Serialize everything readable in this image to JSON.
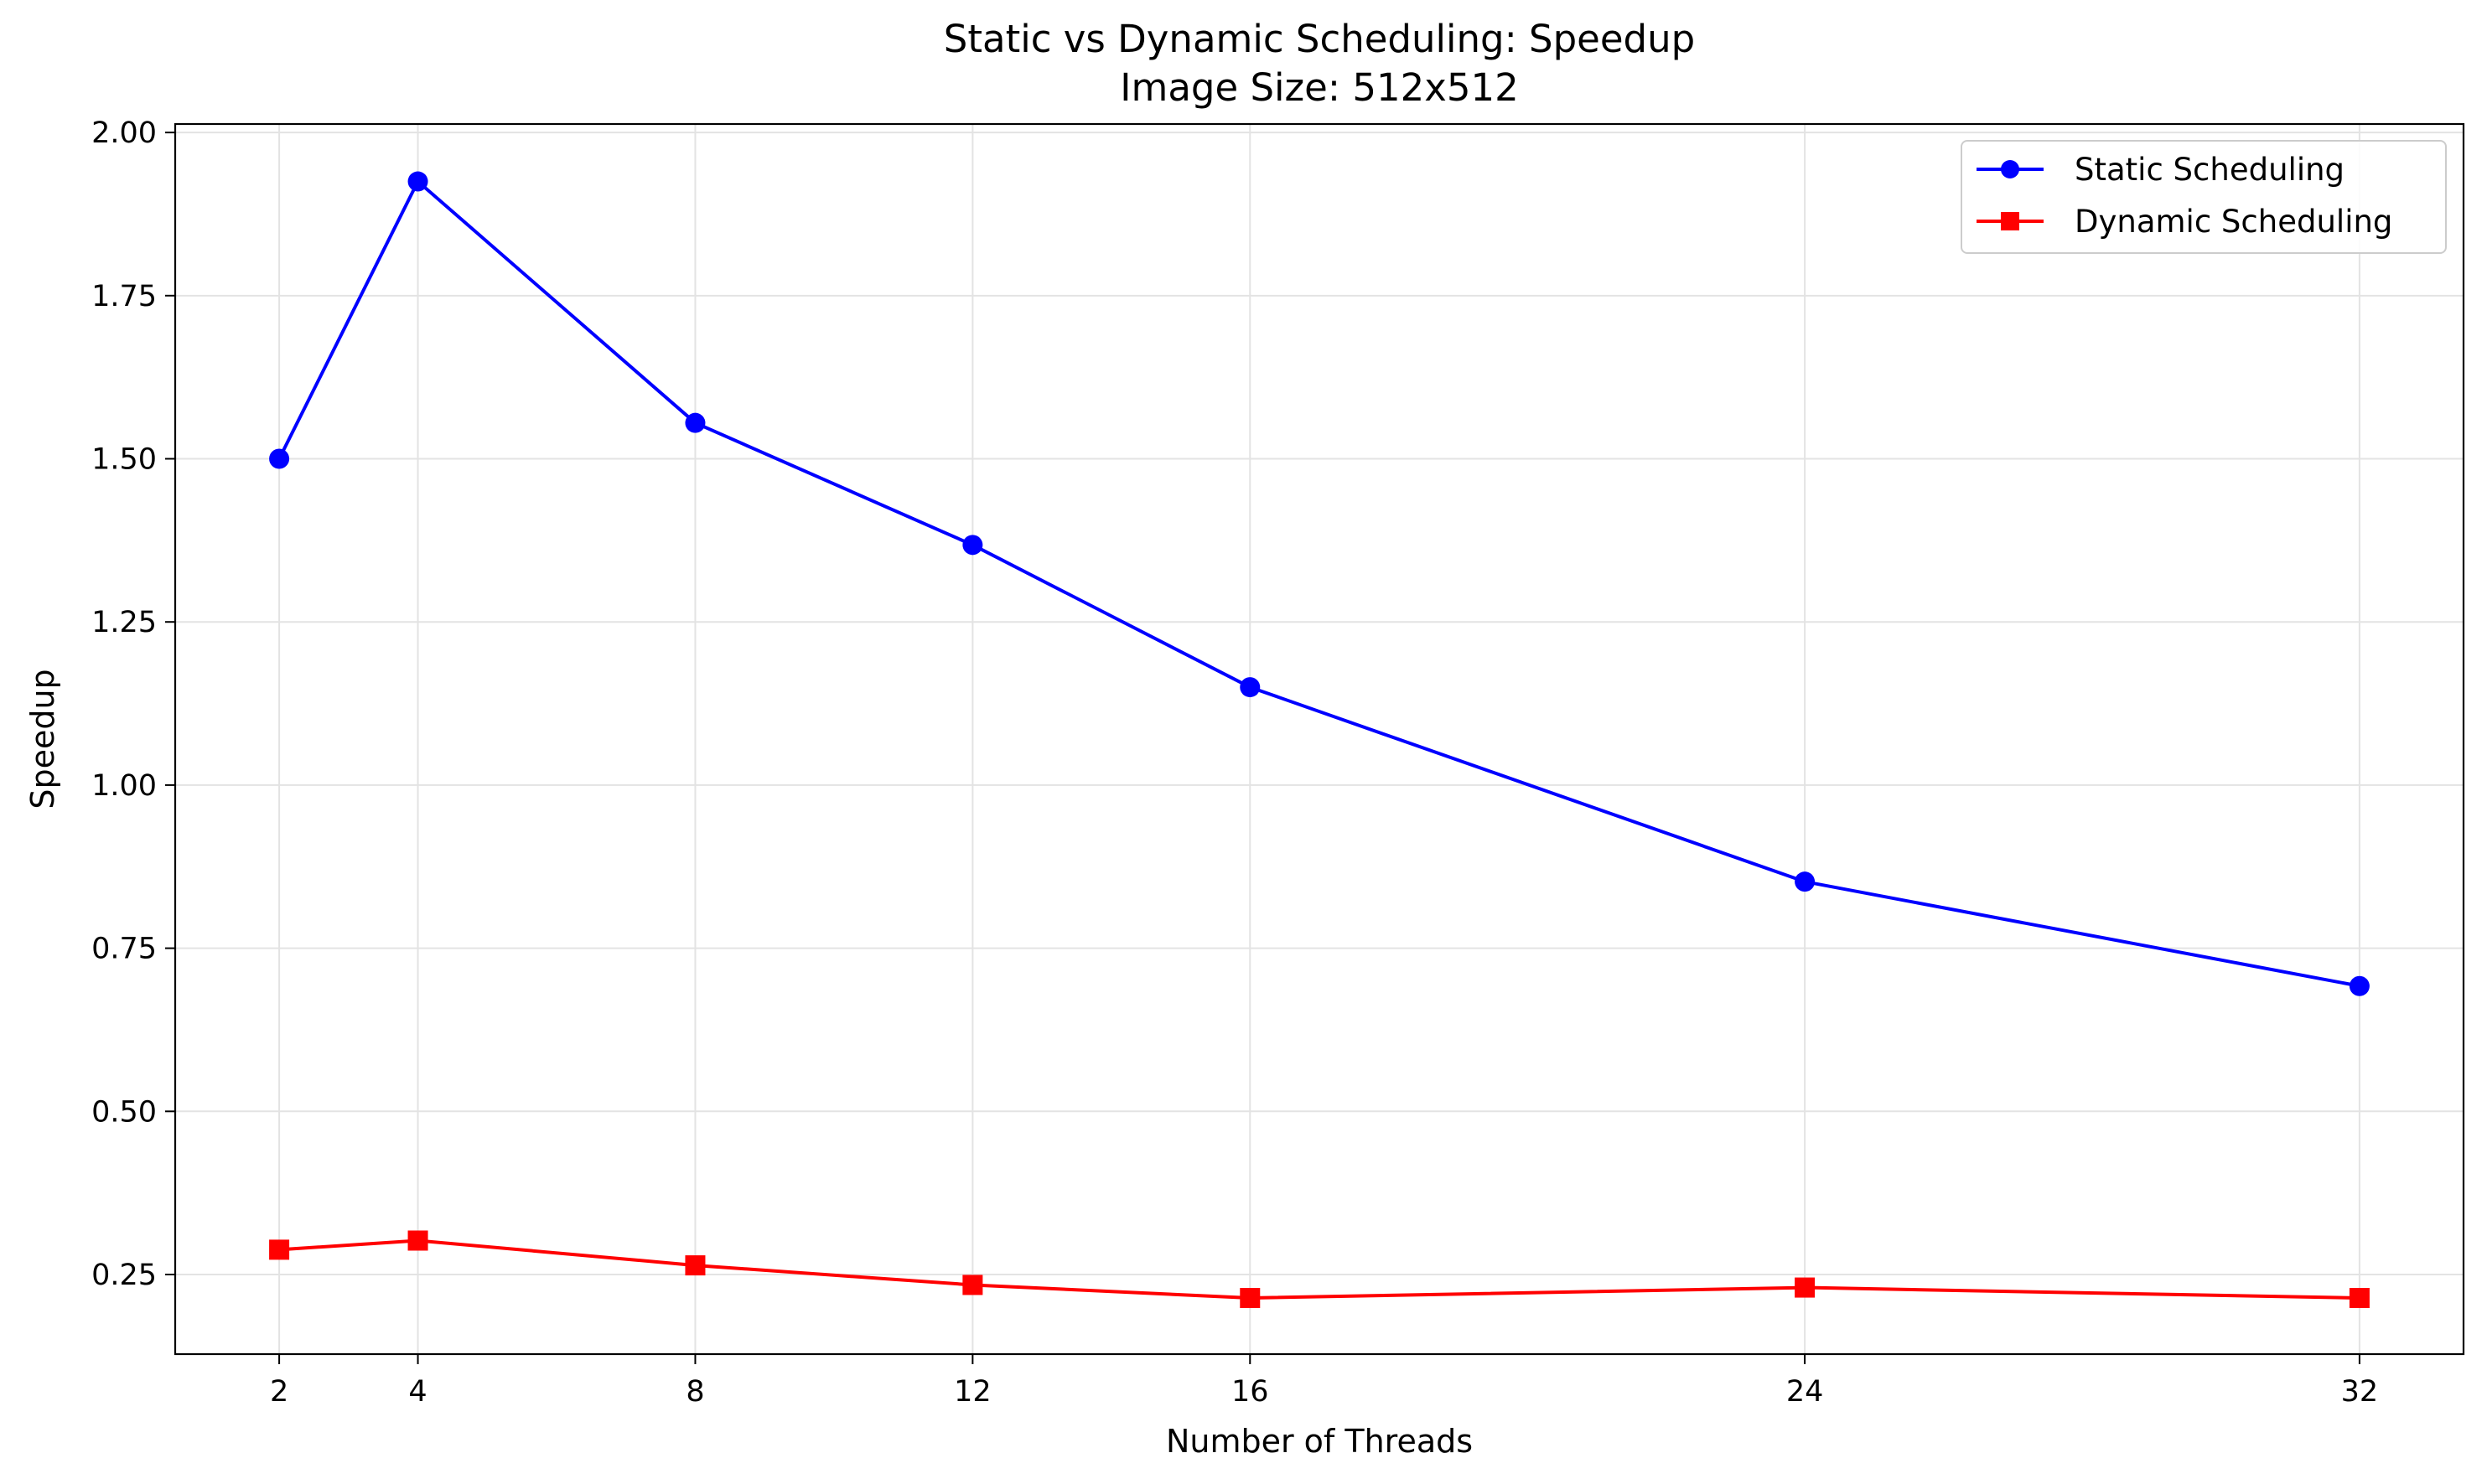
{
  "chart_data": {
    "type": "line",
    "title": "Static vs Dynamic Scheduling: Speedup",
    "subtitle": "Image Size: 512x512",
    "xlabel": "Number of Threads",
    "ylabel": "Speedup",
    "x": [
      2,
      4,
      8,
      12,
      16,
      24,
      32
    ],
    "xticks": [
      "2",
      "4",
      "8",
      "12",
      "16",
      "24",
      "32"
    ],
    "xlim": [
      0.5,
      33.5
    ],
    "yticks": [
      "0.25",
      "0.50",
      "0.75",
      "1.00",
      "1.25",
      "1.50",
      "1.75",
      "2.00"
    ],
    "ylim": [
      0.128,
      2.013
    ],
    "grid": true,
    "legend_position": "top-right",
    "series": [
      {
        "name": "Static Scheduling",
        "color": "#0000ff",
        "marker": "circle",
        "values": [
          1.5,
          1.925,
          1.555,
          1.368,
          1.15,
          0.852,
          0.692
        ]
      },
      {
        "name": "Dynamic Scheduling",
        "color": "#ff0000",
        "marker": "square",
        "values": [
          0.288,
          0.302,
          0.264,
          0.234,
          0.214,
          0.23,
          0.214
        ]
      }
    ]
  }
}
